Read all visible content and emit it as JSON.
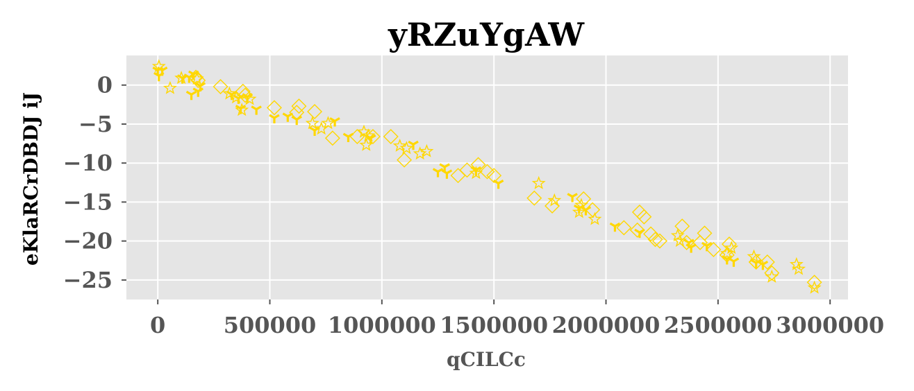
{
  "chart_data": {
    "type": "scatter",
    "title": "yRZuYgAW",
    "xlabel": "qCILCc",
    "ylabel": "eKlaRCrDBDJ iJ",
    "xlim": [
      -140000,
      3080000
    ],
    "ylim": [
      -27.5,
      3.8
    ],
    "xticks": [
      0,
      500000,
      1000000,
      1500000,
      2000000,
      2500000,
      3000000
    ],
    "xtick_labels": [
      "0",
      "500000",
      "1000000",
      "1500000",
      "2000000",
      "2500000",
      "3000000"
    ],
    "yticks": [
      0,
      -5,
      -10,
      -15,
      -20,
      -25
    ],
    "ytick_labels": [
      "0",
      "−5",
      "−10",
      "−15",
      "−20",
      "−25"
    ],
    "grid": true,
    "background": "#e5e5e5",
    "grid_color": "#ffffff",
    "series_color": "#ffd700",
    "series": [
      {
        "marker": "star",
        "points": [
          [
            5000,
            2.4
          ],
          [
            55000,
            -0.4
          ],
          [
            105000,
            0.9
          ],
          [
            175000,
            0.8
          ],
          [
            320000,
            -1.1
          ],
          [
            350000,
            -1.6
          ],
          [
            375000,
            -3.2
          ],
          [
            410000,
            -1.8
          ],
          [
            690000,
            -4.9
          ],
          [
            730000,
            -5.6
          ],
          [
            760000,
            -4.9
          ],
          [
            920000,
            -6.0
          ],
          [
            930000,
            -7.7
          ],
          [
            940000,
            -6.5
          ],
          [
            1080000,
            -7.8
          ],
          [
            1110000,
            -8.1
          ],
          [
            1170000,
            -8.8
          ],
          [
            1200000,
            -8.5
          ],
          [
            1420000,
            -11.3
          ],
          [
            1700000,
            -12.6
          ],
          [
            1770000,
            -14.8
          ],
          [
            1880000,
            -16.3
          ],
          [
            1890000,
            -15.4
          ],
          [
            1950000,
            -17.2
          ],
          [
            2320000,
            -19.3
          ],
          [
            2330000,
            -20.0
          ],
          [
            2540000,
            -21.6
          ],
          [
            2560000,
            -20.9
          ],
          [
            2660000,
            -22.0
          ],
          [
            2740000,
            -24.6
          ],
          [
            2850000,
            -23.0
          ],
          [
            2860000,
            -23.6
          ],
          [
            2930000,
            -26.0
          ]
        ]
      },
      {
        "marker": "diamond",
        "points": [
          [
            170000,
            1.0
          ],
          [
            180000,
            0.6
          ],
          [
            280000,
            -0.2
          ],
          [
            380000,
            -0.8
          ],
          [
            390000,
            -1.3
          ],
          [
            520000,
            -2.9
          ],
          [
            620000,
            -3.5
          ],
          [
            630000,
            -2.7
          ],
          [
            700000,
            -3.4
          ],
          [
            780000,
            -6.8
          ],
          [
            890000,
            -6.6
          ],
          [
            960000,
            -6.6
          ],
          [
            1040000,
            -6.6
          ],
          [
            1100000,
            -9.6
          ],
          [
            1340000,
            -11.6
          ],
          [
            1380000,
            -10.9
          ],
          [
            1430000,
            -10.2
          ],
          [
            1470000,
            -11.1
          ],
          [
            1500000,
            -11.6
          ],
          [
            1680000,
            -14.5
          ],
          [
            1760000,
            -15.5
          ],
          [
            1900000,
            -14.6
          ],
          [
            1940000,
            -16.0
          ],
          [
            2080000,
            -18.3
          ],
          [
            2140000,
            -18.6
          ],
          [
            2150000,
            -16.3
          ],
          [
            2170000,
            -16.9
          ],
          [
            2200000,
            -19.1
          ],
          [
            2220000,
            -19.8
          ],
          [
            2240000,
            -20.0
          ],
          [
            2340000,
            -18.1
          ],
          [
            2360000,
            -20.2
          ],
          [
            2420000,
            -20.2
          ],
          [
            2440000,
            -19.0
          ],
          [
            2480000,
            -21.1
          ],
          [
            2540000,
            -21.8
          ],
          [
            2550000,
            -20.4
          ],
          [
            2670000,
            -22.7
          ],
          [
            2720000,
            -22.7
          ],
          [
            2740000,
            -24.1
          ],
          [
            2930000,
            -25.3
          ]
        ]
      },
      {
        "marker": "tri",
        "points": [
          [
            0,
            1.9
          ],
          [
            5000,
            1.2
          ],
          [
            20000,
            1.9
          ],
          [
            110000,
            0.9
          ],
          [
            140000,
            1.0
          ],
          [
            150000,
            -1.2
          ],
          [
            160000,
            1.4
          ],
          [
            180000,
            -0.8
          ],
          [
            190000,
            -0.1
          ],
          [
            330000,
            -1.2
          ],
          [
            360000,
            -1.7
          ],
          [
            370000,
            -3.0
          ],
          [
            400000,
            -1.5
          ],
          [
            440000,
            -3.1
          ],
          [
            520000,
            -4.2
          ],
          [
            580000,
            -4.0
          ],
          [
            620000,
            -4.4
          ],
          [
            700000,
            -5.8
          ],
          [
            790000,
            -4.6
          ],
          [
            850000,
            -6.6
          ],
          [
            950000,
            -6.8
          ],
          [
            1140000,
            -7.6
          ],
          [
            1250000,
            -11.1
          ],
          [
            1280000,
            -10.5
          ],
          [
            1290000,
            -11.3
          ],
          [
            1420000,
            -10.9
          ],
          [
            1520000,
            -12.6
          ],
          [
            1850000,
            -14.3
          ],
          [
            1880000,
            -15.8
          ],
          [
            1910000,
            -16.0
          ],
          [
            2040000,
            -18.1
          ],
          [
            2150000,
            -18.9
          ],
          [
            2370000,
            -20.2
          ],
          [
            2380000,
            -20.8
          ],
          [
            2450000,
            -20.6
          ],
          [
            2540000,
            -22.3
          ],
          [
            2570000,
            -22.6
          ],
          [
            2670000,
            -22.8
          ],
          [
            2700000,
            -23.0
          ]
        ]
      }
    ]
  }
}
